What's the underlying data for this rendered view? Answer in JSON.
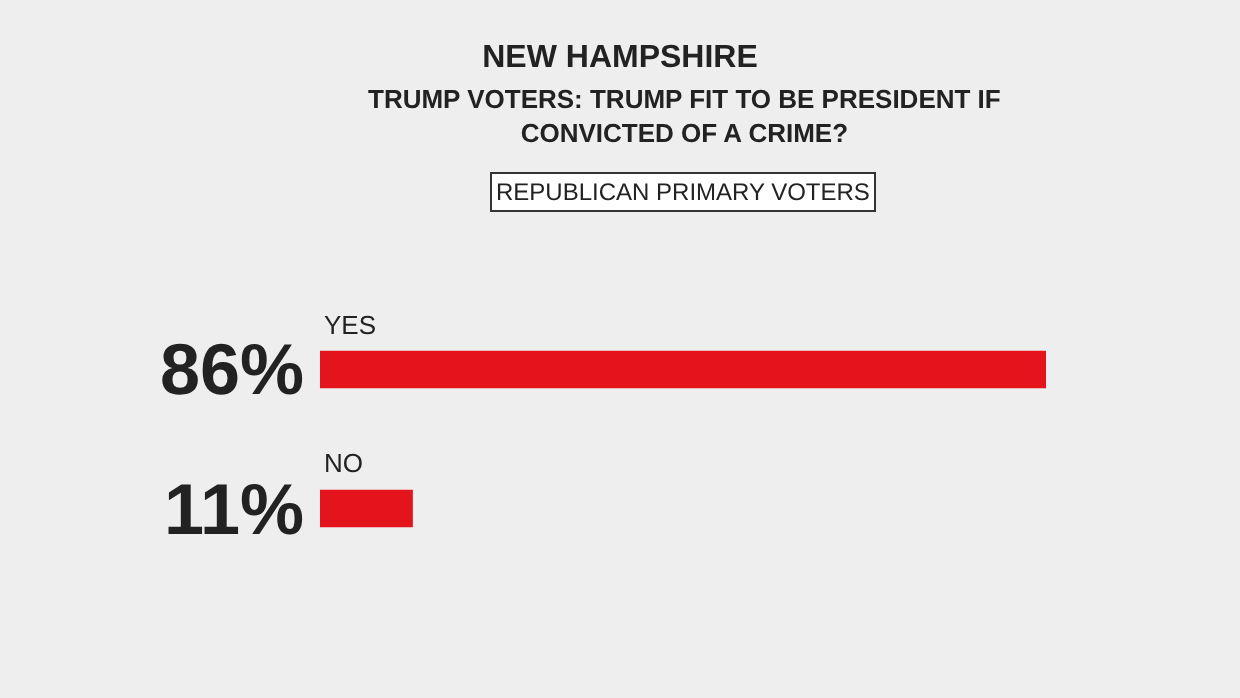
{
  "chart_data": {
    "type": "bar",
    "orientation": "horizontal",
    "title": "NEW HAMPSHIRE",
    "subtitle": "TRUMP VOTERS: TRUMP FIT TO BE PRESIDENT IF CONVICTED OF A CRIME?",
    "annotations": [
      "REPUBLICAN PRIMARY VOTERS"
    ],
    "categories": [
      "YES",
      "NO"
    ],
    "values": [
      86,
      11
    ],
    "color": "#e3141c",
    "value_labels": [
      "86%",
      "11%"
    ]
  }
}
